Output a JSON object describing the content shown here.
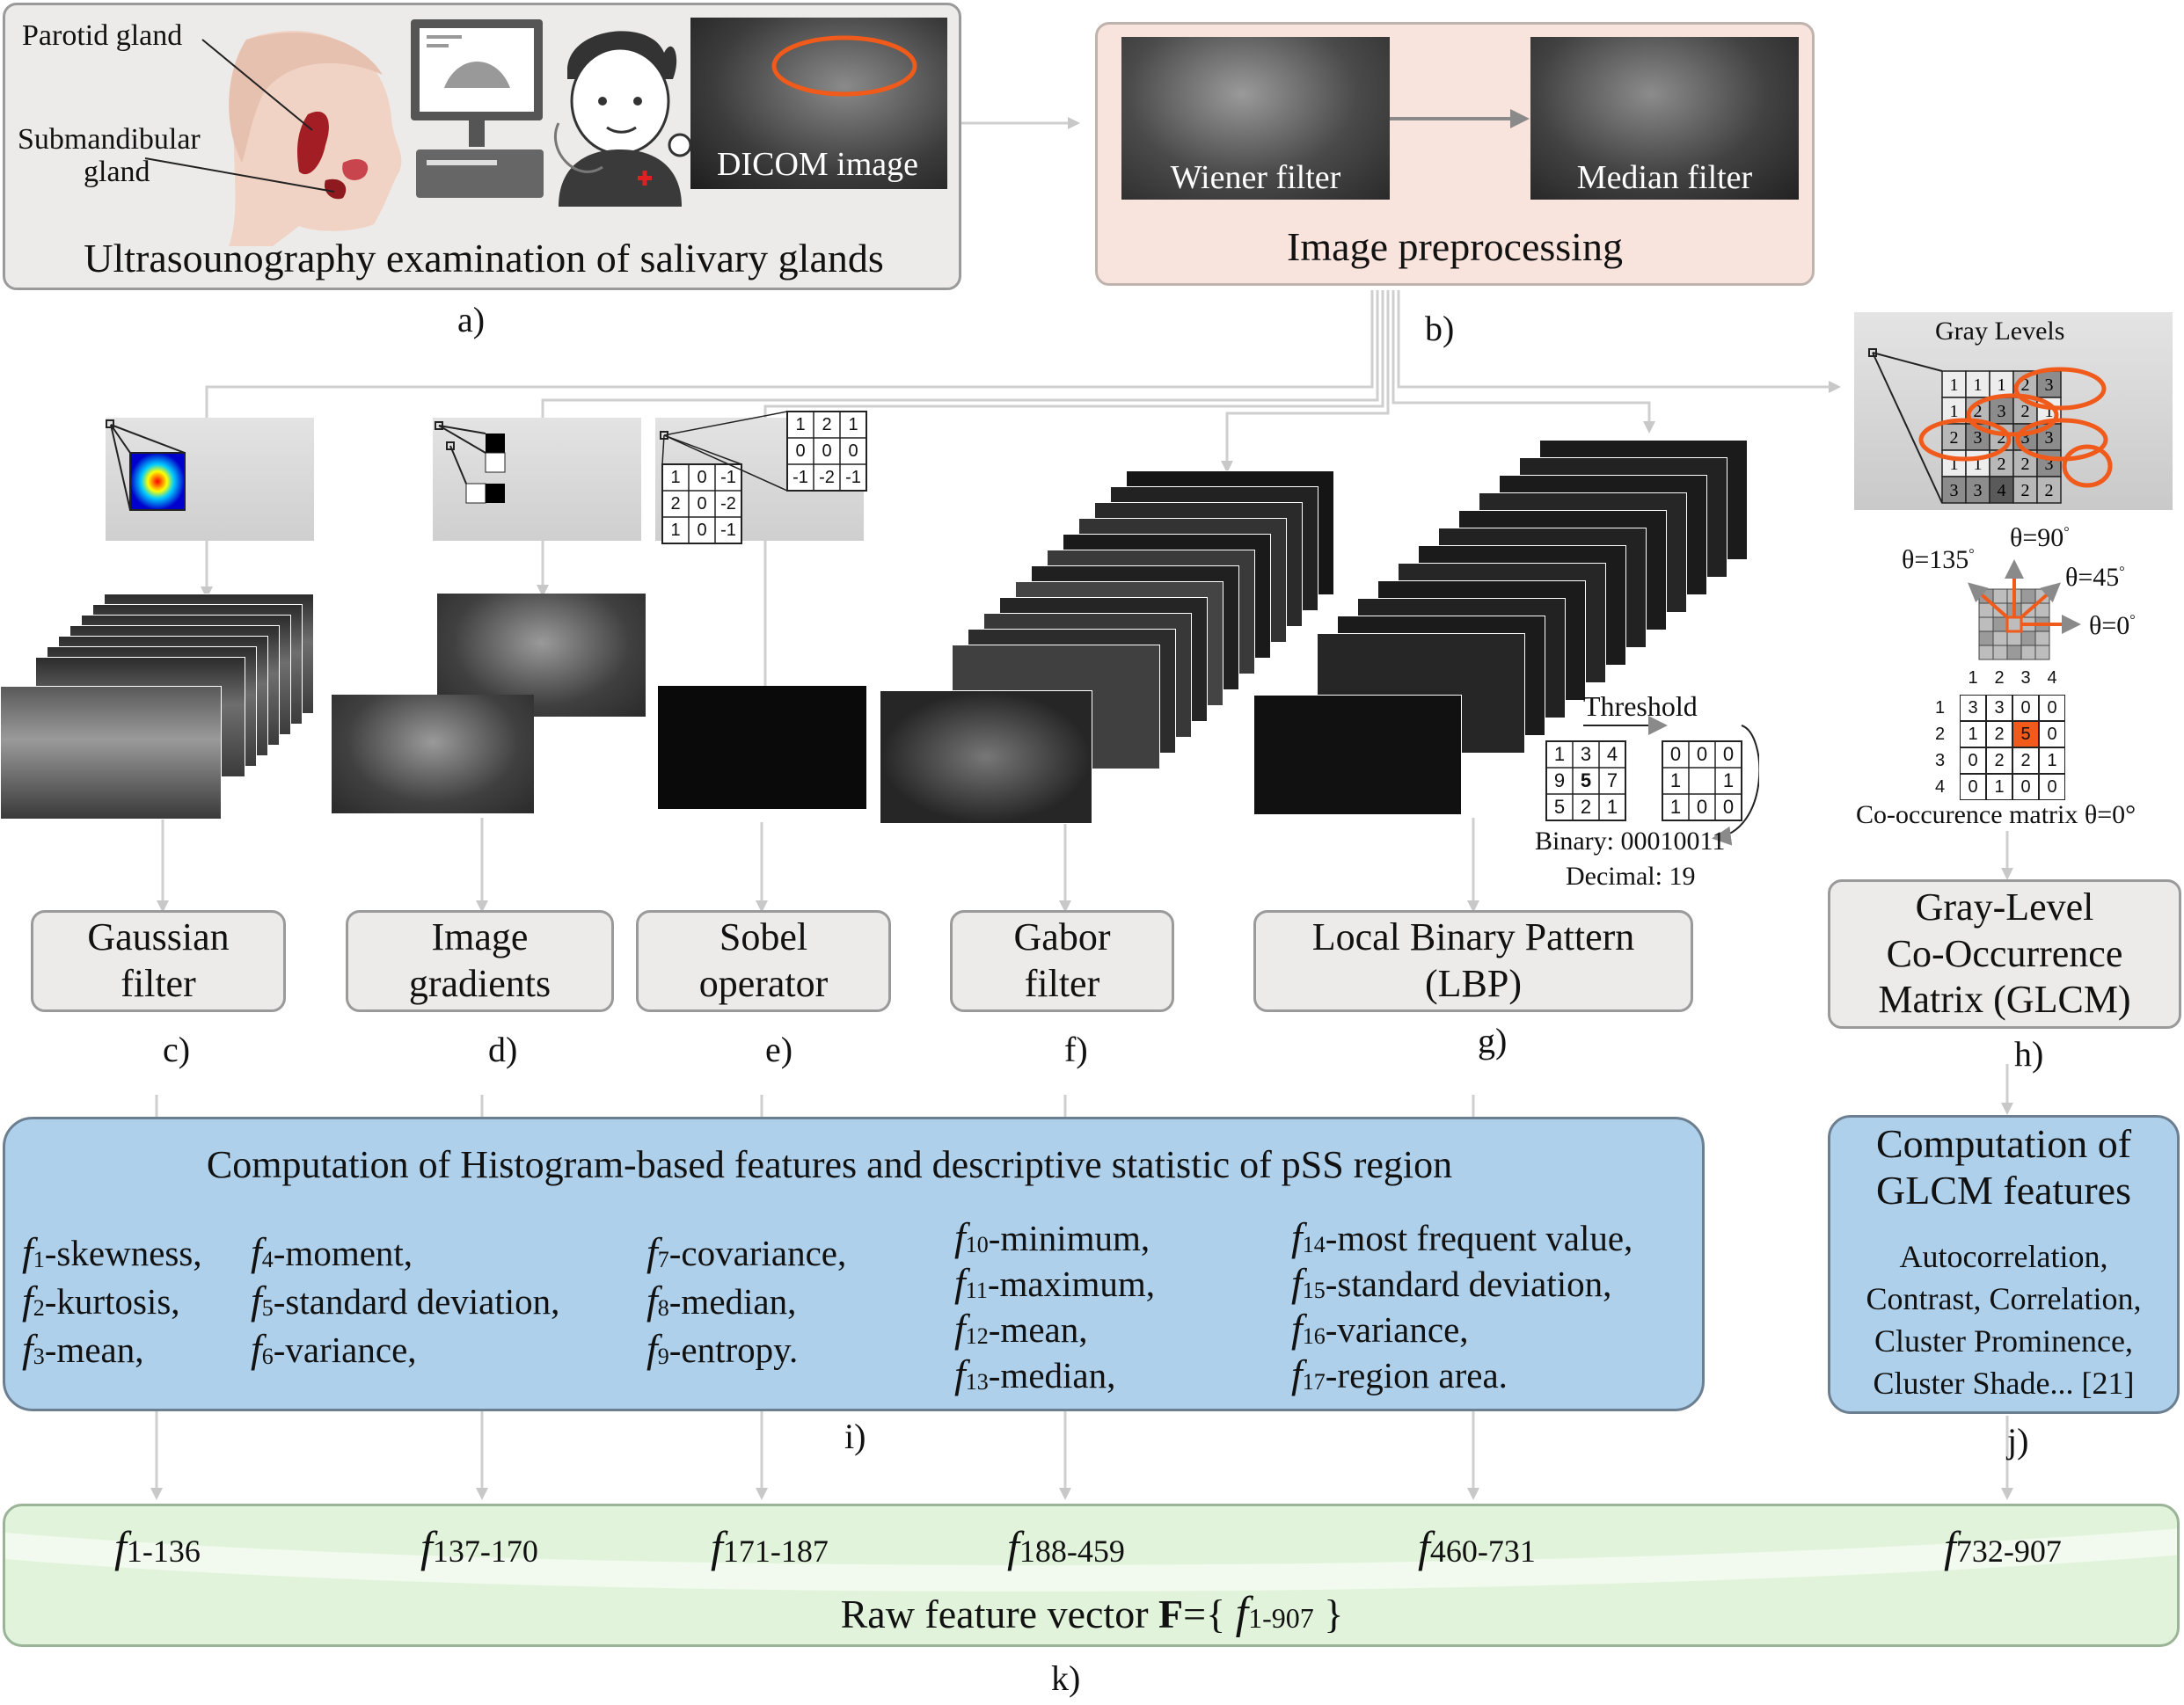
{
  "panel_a": {
    "label_parotid": "Parotid gland",
    "label_submandibular_1": "Submandibular",
    "label_submandibular_2": "gland",
    "dicom_label": "DICOM image",
    "title": "Ultrasounography examination of salivary glands",
    "letter": "a)"
  },
  "panel_b": {
    "wiener": "Wiener filter",
    "median": "Median filter",
    "title": "Image preprocessing",
    "letter": "b)"
  },
  "methods": [
    {
      "line1": "Gaussian",
      "line2": "filter",
      "letter": "c)"
    },
    {
      "line1": "Image",
      "line2": "gradients",
      "letter": "d)"
    },
    {
      "line1": "Sobel",
      "line2": "operator",
      "letter": "e)"
    },
    {
      "line1": "Gabor",
      "line2": "filter",
      "letter": "f)"
    },
    {
      "line1": "Local Binary Pattern",
      "line2": "(LBP)",
      "letter": "g)"
    },
    {
      "line1": "Gray-Level",
      "line2": "Co-Occurrence",
      "line3": "Matrix (GLCM)",
      "letter": "h)"
    }
  ],
  "sobel_kernels": {
    "gx": [
      [
        "1",
        "0",
        "-1"
      ],
      [
        "2",
        "0",
        "-2"
      ],
      [
        "1",
        "0",
        "-1"
      ]
    ],
    "gy": [
      [
        "1",
        "2",
        "1"
      ],
      [
        "0",
        "0",
        "0"
      ],
      [
        "-1",
        "-2",
        "-1"
      ]
    ]
  },
  "lbp": {
    "threshold": "Threshold",
    "grid": [
      [
        "1",
        "3",
        "4"
      ],
      [
        "9",
        "5",
        "7"
      ],
      [
        "5",
        "2",
        "1"
      ]
    ],
    "binary_grid": [
      [
        "0",
        "0",
        "0"
      ],
      [
        "1",
        "",
        "1"
      ],
      [
        "1",
        "0",
        "0"
      ]
    ],
    "binary": "Binary: 00010011",
    "decimal": "Decimal: 19"
  },
  "glcm": {
    "gray_levels": "Gray Levels",
    "gray_grid": [
      [
        "1",
        "1",
        "1",
        "2",
        "3"
      ],
      [
        "1",
        "2",
        "3",
        "2",
        "1"
      ],
      [
        "2",
        "3",
        "2",
        "3",
        "3"
      ],
      [
        "1",
        "1",
        "2",
        "2",
        "3"
      ],
      [
        "3",
        "3",
        "4",
        "2",
        "2"
      ]
    ],
    "theta_135": "θ=135",
    "theta_90": "θ=90",
    "theta_45": "θ=45",
    "theta_0": "θ=0",
    "degree": "°",
    "matrix_header": [
      "1",
      "2",
      "3",
      "4"
    ],
    "matrix": [
      [
        "3",
        "3",
        "0",
        "0"
      ],
      [
        "1",
        "2",
        "5",
        "0"
      ],
      [
        "0",
        "2",
        "2",
        "1"
      ],
      [
        "0",
        "1",
        "0",
        "0"
      ]
    ],
    "caption": "Co-occurence matrix θ=0°"
  },
  "panel_i": {
    "title": "Computation of Histogram-based features and descriptive statistic of pSS region",
    "letter": "i)",
    "columns": [
      [
        {
          "f": "f",
          "n": "1",
          "t": "-skewness,"
        },
        {
          "f": "f",
          "n": "2",
          "t": "-kurtosis,"
        },
        {
          "f": "f",
          "n": "3",
          "t": "-mean,"
        }
      ],
      [
        {
          "f": "f",
          "n": "4",
          "t": "-moment,"
        },
        {
          "f": "f",
          "n": "5",
          "t": "-standard deviation,"
        },
        {
          "f": "f",
          "n": "6",
          "t": "-variance,"
        }
      ],
      [
        {
          "f": "f",
          "n": "7",
          "t": "-covariance,"
        },
        {
          "f": "f",
          "n": "8",
          "t": "-median,"
        },
        {
          "f": "f",
          "n": "9",
          "t": "-entropy."
        }
      ],
      [
        {
          "f": "f",
          "n": "10",
          "t": "-minimum,"
        },
        {
          "f": "f",
          "n": "11",
          "t": "-maximum,"
        },
        {
          "f": "f",
          "n": "12",
          "t": "-mean,"
        },
        {
          "f": "f",
          "n": "13",
          "t": "-median,"
        }
      ],
      [
        {
          "f": "f",
          "n": "14",
          "t": "-most frequent value,"
        },
        {
          "f": "f",
          "n": "15",
          "t": "-standard deviation,"
        },
        {
          "f": "f",
          "n": "16",
          "t": "-variance,"
        },
        {
          "f": "f",
          "n": "17",
          "t": "-region area."
        }
      ]
    ]
  },
  "panel_j": {
    "title_1": "Computation of",
    "title_2": "GLCM features",
    "items": [
      "Autocorrelation,",
      "Contrast, Correlation,",
      "Cluster Prominence,",
      "Cluster Shade... [21]"
    ],
    "letter": "j)"
  },
  "panel_k": {
    "ranges": [
      "1-136",
      "137-170",
      "171-187",
      "188-459",
      "460-731",
      "732-907"
    ],
    "f": "f",
    "title_prefix": "Raw feature vector ",
    "title_bold": "F",
    "title_eq": "={ ",
    "title_f": "f",
    "title_sub": "1-907",
    "title_close": " }",
    "letter": "k)"
  }
}
